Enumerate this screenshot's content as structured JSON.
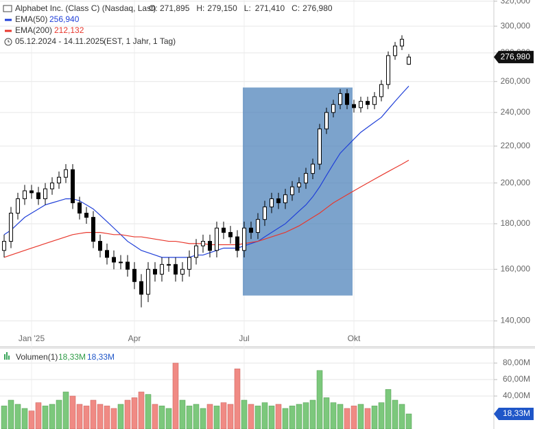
{
  "chart_data": [
    {
      "type": "candlestick",
      "title": "Alphabet Inc. (Class C) (Nasdaq, Last)",
      "ohlc_labels": [
        {
          "name": "O:",
          "label": "271,895"
        },
        {
          "name": "H:",
          "label": "279,150"
        },
        {
          "name": "L:",
          "label": "271,410"
        },
        {
          "name": "C:",
          "label": "276,980"
        }
      ],
      "date_range": "05.12.2024 - 14.11.2025",
      "subtitle": "(EST, 1 Jahr, 1 Tag)",
      "last_price_label": "276,980",
      "categories": [
        null,
        null,
        null,
        null,
        "Jan '25",
        null,
        null,
        null,
        null,
        null,
        null,
        null,
        null,
        null,
        null,
        null,
        null,
        null,
        null,
        "Apr",
        null,
        null,
        null,
        null,
        null,
        null,
        null,
        null,
        null,
        null,
        null,
        null,
        null,
        null,
        null,
        "Jul",
        null,
        null,
        null,
        null,
        null,
        null,
        null,
        null,
        null,
        null,
        null,
        null,
        null,
        null,
        null,
        "Okt",
        null,
        null,
        null,
        null,
        null,
        null,
        null,
        null
      ],
      "candles": {
        "open": [
          168,
          172,
          185,
          192,
          196,
          195,
          192,
          197,
          200,
          203,
          207,
          190,
          185,
          183,
          172,
          168,
          165,
          163,
          163,
          160,
          155,
          150,
          160,
          158,
          162,
          162,
          158,
          160,
          165,
          170,
          172,
          168,
          178,
          176,
          174,
          168,
          178,
          176,
          182,
          188,
          192,
          190,
          194,
          198,
          200,
          205,
          210,
          230,
          240,
          245,
          252,
          245,
          243,
          247,
          245,
          250,
          258,
          278,
          285,
          271.895
        ],
        "high": [
          175,
          188,
          195,
          199,
          199,
          198,
          200,
          203,
          206,
          210,
          210,
          193,
          188,
          186,
          175,
          171,
          168,
          166,
          166,
          163,
          158,
          163,
          163,
          165,
          165,
          165,
          163,
          168,
          173,
          175,
          175,
          181,
          181,
          179,
          177,
          181,
          181,
          185,
          191,
          195,
          195,
          197,
          201,
          203,
          208,
          213,
          233,
          243,
          248,
          255,
          255,
          248,
          250,
          250,
          253,
          261,
          281,
          288,
          293,
          279.15
        ],
        "low": [
          165,
          169,
          182,
          189,
          192,
          189,
          189,
          194,
          197,
          200,
          187,
          182,
          180,
          169,
          165,
          162,
          160,
          160,
          157,
          152,
          145,
          147,
          155,
          155,
          159,
          155,
          155,
          157,
          162,
          167,
          165,
          165,
          173,
          171,
          165,
          165,
          173,
          173,
          179,
          185,
          187,
          187,
          191,
          195,
          197,
          202,
          207,
          227,
          237,
          242,
          242,
          240,
          240,
          242,
          242,
          247,
          255,
          275,
          282,
          271.41
        ],
        "close": [
          172,
          185,
          192,
          196,
          195,
          192,
          197,
          200,
          203,
          207,
          190,
          185,
          183,
          172,
          168,
          165,
          163,
          163,
          160,
          155,
          150,
          160,
          158,
          162,
          162,
          158,
          160,
          165,
          170,
          172,
          168,
          178,
          176,
          174,
          168,
          178,
          176,
          182,
          188,
          192,
          190,
          194,
          198,
          200,
          205,
          210,
          230,
          240,
          245,
          252,
          245,
          243,
          247,
          245,
          250,
          258,
          278,
          285,
          290,
          276.98
        ]
      },
      "candle_color": "#000000",
      "series": [
        {
          "name": "EMA(50)",
          "color": "#1f3fd8",
          "last_label": "256,940",
          "values": [
            175,
            177,
            180,
            183,
            185,
            187,
            189,
            190,
            191,
            192,
            192,
            191,
            189,
            187,
            184,
            181,
            178,
            175,
            172,
            170,
            168,
            167,
            166,
            165,
            165,
            165,
            165,
            165,
            166,
            166,
            167,
            168,
            169,
            169,
            169,
            170,
            171,
            172,
            174,
            176,
            178,
            180,
            183,
            186,
            189,
            193,
            198,
            204,
            210,
            216,
            220,
            224,
            228,
            231,
            234,
            237,
            242,
            247,
            252,
            256.94
          ]
        },
        {
          "name": "EMA(200)",
          "color": "#e8372c",
          "last_label": "212,132",
          "values": [
            165,
            166,
            167,
            168,
            169,
            170,
            171,
            172,
            173,
            174,
            175,
            175.5,
            176,
            176,
            176,
            175.5,
            175,
            175,
            174.5,
            174,
            174,
            173.5,
            173,
            172.5,
            172,
            172,
            171.5,
            171,
            171,
            171,
            170.5,
            170.5,
            170.5,
            170.5,
            170.5,
            171,
            171.5,
            172,
            173,
            174,
            175,
            176,
            177.5,
            179,
            181,
            183,
            185,
            187.5,
            190,
            192,
            194,
            196,
            198,
            200,
            202,
            204,
            206,
            208,
            210,
            212.132
          ]
        }
      ],
      "highlight": {
        "start_category": "Jul",
        "end_category": "Okt",
        "top": 256,
        "bottom": 149.5,
        "color": "#4a80b8"
      },
      "ylim": [
        131,
        321
      ],
      "log_scale": true,
      "grid": true,
      "yticks": [
        {
          "value": 140,
          "label": "140,000"
        },
        {
          "value": 160,
          "label": "160,000"
        },
        {
          "value": 180,
          "label": "180,000"
        },
        {
          "value": 200,
          "label": "200,000"
        },
        {
          "value": 220,
          "label": "220,000"
        },
        {
          "value": 240,
          "label": "240,000"
        },
        {
          "value": 260,
          "label": "260,000"
        },
        {
          "value": 280,
          "label": "280,000"
        },
        {
          "value": 300,
          "label": "300,000"
        },
        {
          "value": 320,
          "label": "320,000"
        }
      ]
    },
    {
      "type": "bar",
      "name": "Volumen(1)",
      "legend_labels": [
        "18,33M",
        "18,33M"
      ],
      "up_color": "#7cc87c",
      "down_color": "#f08a84",
      "values": [
        28,
        35,
        30,
        25,
        22,
        32,
        28,
        30,
        35,
        45,
        40,
        30,
        28,
        35,
        30,
        28,
        25,
        30,
        35,
        38,
        45,
        42,
        30,
        28,
        25,
        80,
        35,
        28,
        30,
        25,
        30,
        28,
        32,
        30,
        73,
        35,
        30,
        28,
        32,
        28,
        30,
        25,
        28,
        30,
        32,
        35,
        71,
        38,
        32,
        30,
        25,
        28,
        30,
        25,
        28,
        32,
        48,
        35,
        30,
        18.33
      ],
      "last_value_label": "18,33M",
      "ylim": [
        0,
        98.3
      ],
      "grid": true,
      "yticks": [
        {
          "value": 40,
          "label": "40,00M"
        },
        {
          "value": 60,
          "label": "60,00M"
        },
        {
          "value": 80,
          "label": "80,00M"
        }
      ]
    }
  ]
}
